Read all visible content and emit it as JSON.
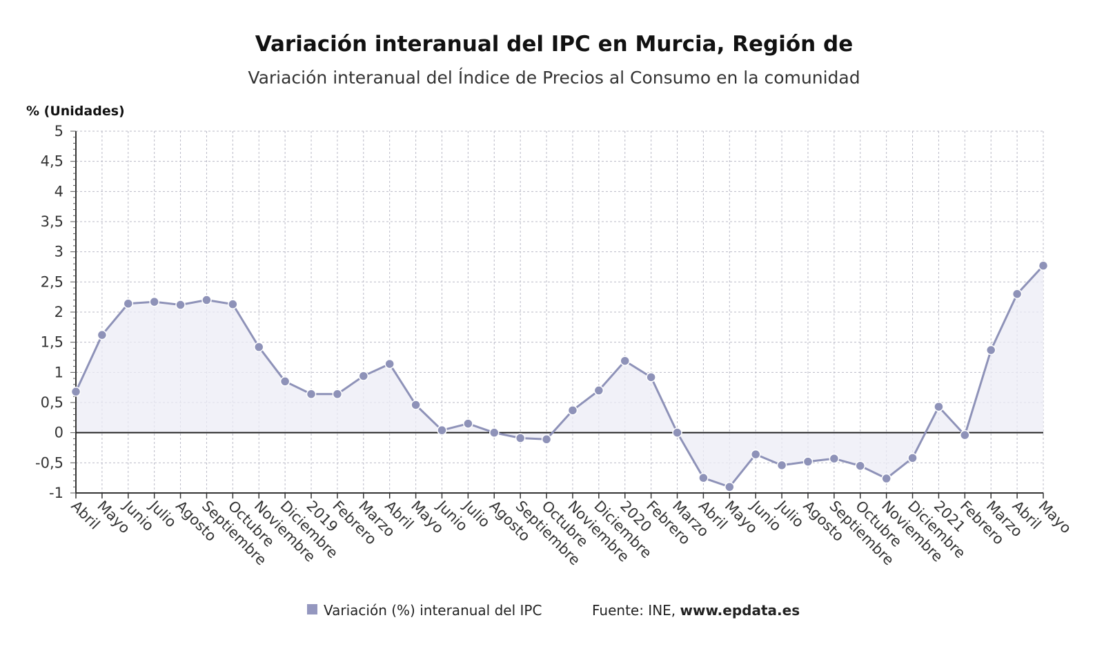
{
  "header": {
    "title": "Variación interanual del IPC en Murcia, Región de",
    "subtitle": "Variación interanual del Índice de Precios al Consumo en la comunidad"
  },
  "legend": {
    "label": "Variación (%) interanual del IPC",
    "color": "#9497bf",
    "source_prefix": "Fuente: INE, ",
    "source_site": "www.epdata.es"
  },
  "colors": {
    "line": "#8e92b8",
    "marker": "#8e92b8",
    "area": "#ececf6",
    "zero": "#222222",
    "grid": "#b9b9c6"
  },
  "chart_data": {
    "type": "line",
    "ylabel": "% (Unidades)",
    "ylim": [
      -1,
      5
    ],
    "yticks": [
      "5",
      "4,5",
      "4",
      "3,5",
      "3",
      "2,5",
      "2",
      "1,5",
      "1",
      "0,5",
      "0",
      "-0,5",
      "-1"
    ],
    "ytick_values": [
      5,
      4.5,
      4,
      3.5,
      3,
      2.5,
      2,
      1.5,
      1,
      0.5,
      0,
      -0.5,
      -1
    ],
    "grid": true,
    "area_fill": true,
    "categories": [
      "Abril",
      "Mayo",
      "Junio",
      "Julio",
      "Agosto",
      "Septiembre",
      "Octubre",
      "Noviembre",
      "Diciembre",
      "2019",
      "Febrero",
      "Marzo",
      "Abril",
      "Mayo",
      "Junio",
      "Julio",
      "Agosto",
      "Septiembre",
      "Octubre",
      "Noviembre",
      "Diciembre",
      "2020",
      "Febrero",
      "Marzo",
      "Abril",
      "Mayo",
      "Junio",
      "Julio",
      "Agosto",
      "Septiembre",
      "Octubre",
      "Noviembre",
      "Diciembre",
      "2021",
      "Febrero",
      "Marzo",
      "Abril",
      "Mayo"
    ],
    "series": [
      {
        "name": "Variación (%) interanual del IPC",
        "values": [
          0.68,
          1.62,
          2.14,
          2.17,
          2.12,
          2.2,
          2.13,
          1.42,
          0.85,
          0.64,
          0.64,
          0.94,
          1.14,
          0.46,
          0.04,
          0.15,
          0.0,
          -0.09,
          -0.11,
          0.37,
          0.7,
          1.19,
          0.92,
          0.0,
          -0.75,
          -0.9,
          -0.36,
          -0.54,
          -0.48,
          -0.43,
          -0.55,
          -0.76,
          -0.42,
          0.43,
          -0.04,
          1.37,
          2.3,
          2.77
        ]
      }
    ]
  }
}
